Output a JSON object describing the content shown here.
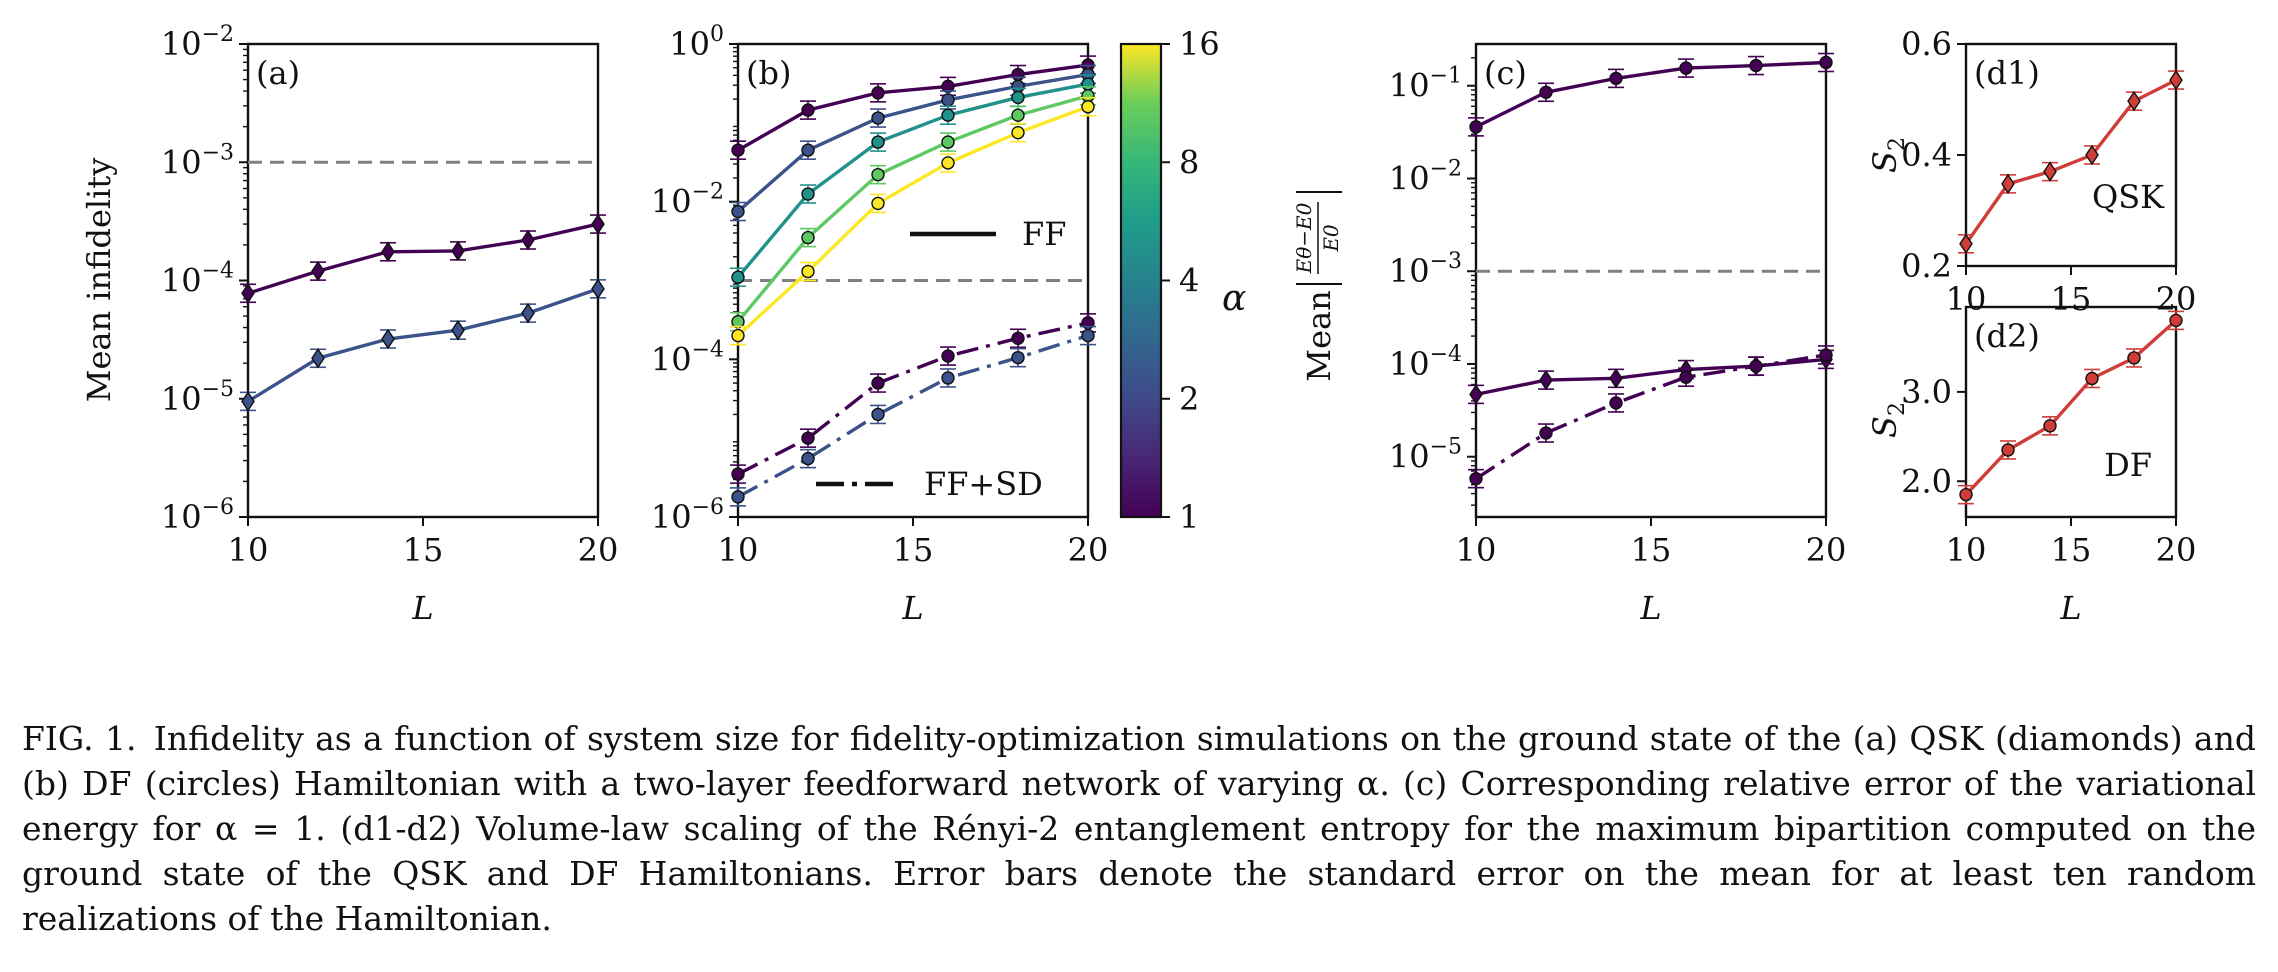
{
  "chart_data": [
    {
      "id": "a",
      "type": "line",
      "panel_label": "(a)",
      "xlabel": "L",
      "ylabel": "Mean infidelity",
      "yscale": "log",
      "xlim": [
        10,
        20
      ],
      "ylim_exp": [
        -6,
        -2
      ],
      "xticks": [
        10,
        15,
        20
      ],
      "xtick_labels": [
        "10",
        "15",
        "20"
      ],
      "yticks_exp": [
        -6,
        -5,
        -4,
        -3,
        -2
      ],
      "ytick_labels": [
        "10",
        "10",
        "10",
        "10",
        "10"
      ],
      "ytick_exps": [
        "−6",
        "−5",
        "−4",
        "−3",
        "−2"
      ],
      "hline": 0.001,
      "x": [
        10,
        12,
        14,
        16,
        18,
        20
      ],
      "series": [
        {
          "name": "alpha=1",
          "color": "#440154",
          "marker": "diamond",
          "values": [
            7.8e-05,
            0.00012,
            0.000175,
            0.000178,
            0.00022,
            0.0003
          ]
        },
        {
          "name": "alpha=2",
          "color": "#3b528b",
          "marker": "diamond",
          "values": [
            9.5e-06,
            2.2e-05,
            3.2e-05,
            3.8e-05,
            5.3e-05,
            8.5e-05
          ]
        }
      ]
    },
    {
      "id": "b",
      "type": "line",
      "panel_label": "(b)",
      "xlabel": "L",
      "yscale": "log",
      "xlim": [
        10,
        20
      ],
      "ylim_exp": [
        -6,
        0
      ],
      "xticks": [
        10,
        15,
        20
      ],
      "xtick_labels": [
        "10",
        "15",
        "20"
      ],
      "yticks_exp": [
        -6,
        -4,
        -2,
        0
      ],
      "ytick_labels": [
        "10",
        "10",
        "10",
        "10"
      ],
      "ytick_exps": [
        "−6",
        "−4",
        "−2",
        "0"
      ],
      "hline": 0.001,
      "legend": [
        {
          "label": "FF",
          "style": "solid"
        },
        {
          "label": "FF+SD",
          "style": "dashdot"
        }
      ],
      "x": [
        10,
        12,
        14,
        16,
        18,
        20
      ],
      "series": [
        {
          "name": "FF alpha=1",
          "color": "#440154",
          "style": "solid",
          "values": [
            0.045,
            0.145,
            0.24,
            0.29,
            0.41,
            0.54
          ]
        },
        {
          "name": "FF alpha=2",
          "color": "#3b528b",
          "style": "solid",
          "values": [
            0.0075,
            0.045,
            0.115,
            0.195,
            0.29,
            0.41
          ]
        },
        {
          "name": "FF alpha=4",
          "color": "#21918c",
          "style": "solid",
          "values": [
            0.0011,
            0.0125,
            0.057,
            0.125,
            0.21,
            0.31
          ]
        },
        {
          "name": "FF alpha=8",
          "color": "#5ec962",
          "style": "solid",
          "values": [
            0.0003,
            0.0035,
            0.022,
            0.057,
            0.125,
            0.22
          ]
        },
        {
          "name": "FF alpha=16",
          "color": "#fde725",
          "style": "solid",
          "values": [
            0.0002,
            0.0013,
            0.0095,
            0.031,
            0.075,
            0.16
          ]
        },
        {
          "name": "FF+SD alpha=1",
          "color": "#440154",
          "style": "dashdot",
          "values": [
            3.5e-06,
            1e-05,
            5e-05,
            0.00011,
            0.000185,
            0.00029
          ]
        },
        {
          "name": "FF+SD alpha=2",
          "color": "#3b528b",
          "style": "dashdot",
          "values": [
            1.8e-06,
            5.5e-06,
            2e-05,
            5.8e-05,
            0.000105,
            0.0002
          ]
        }
      ],
      "colorbar": {
        "label": "α",
        "tick_labels": [
          "1",
          "2",
          "4",
          "8",
          "16"
        ]
      }
    },
    {
      "id": "c",
      "type": "line",
      "panel_label": "(c)",
      "xlabel": "L",
      "ylabel": "Mean",
      "yscale": "log",
      "xlim": [
        10,
        20
      ],
      "ylim_exp": [
        -5.65,
        -0.55
      ],
      "xticks": [
        10,
        15,
        20
      ],
      "xtick_labels": [
        "10",
        "15",
        "20"
      ],
      "yticks_exp": [
        -5,
        -4,
        -3,
        -2,
        -1
      ],
      "ytick_labels": [
        "10",
        "10",
        "10",
        "10",
        "10"
      ],
      "ytick_exps": [
        "−5",
        "−4",
        "−3",
        "−2",
        "−1"
      ],
      "hline": 0.001,
      "x": [
        10,
        12,
        14,
        16,
        18,
        20
      ],
      "series": [
        {
          "name": "DF FF",
          "color": "#440154",
          "style": "solid",
          "marker": "circle",
          "values": [
            0.036,
            0.085,
            0.12,
            0.155,
            0.165,
            0.178
          ]
        },
        {
          "name": "QSK FF",
          "color": "#440154",
          "style": "solid",
          "marker": "diamond",
          "values": [
            4.7e-05,
            6.7e-05,
            7e-05,
            8.7e-05,
            9.5e-05,
            0.000112
          ]
        },
        {
          "name": "DF FF+SD",
          "color": "#440154",
          "style": "dashdot",
          "marker": "circle",
          "values": [
            5.8e-06,
            1.8e-05,
            3.8e-05,
            7.2e-05,
            9.45e-05,
            0.000125
          ]
        }
      ]
    },
    {
      "id": "d1",
      "type": "line",
      "panel_label": "(d1)",
      "ylabel": "S",
      "ylabel_sub": "2",
      "annotation": "QSK",
      "xlim": [
        10,
        20
      ],
      "ylim": [
        0.2,
        0.6
      ],
      "xticks": [
        10,
        15,
        20
      ],
      "xtick_labels": [
        "10",
        "15",
        "20"
      ],
      "yticks": [
        0.2,
        0.4,
        0.6
      ],
      "ytick_labels": [
        "0.2",
        "0.4",
        "0.6"
      ],
      "x": [
        10,
        12,
        14,
        16,
        18,
        20
      ],
      "series": [
        {
          "name": "QSK",
          "color": "#d03d39",
          "marker": "diamond",
          "values": [
            0.24,
            0.348,
            0.37,
            0.4,
            0.497,
            0.535
          ]
        }
      ]
    },
    {
      "id": "d2",
      "type": "line",
      "panel_label": "(d2)",
      "xlabel": "L",
      "ylabel": "S",
      "ylabel_sub": "2",
      "annotation": "DF",
      "xlim": [
        10,
        20
      ],
      "ylim": [
        1.6,
        3.95
      ],
      "xticks": [
        10,
        15,
        20
      ],
      "xtick_labels": [
        "10",
        "15",
        "20"
      ],
      "yticks": [
        2.0,
        3.0
      ],
      "ytick_labels": [
        "2.0",
        "3.0"
      ],
      "x": [
        10,
        12,
        14,
        16,
        18,
        20
      ],
      "series": [
        {
          "name": "DF",
          "color": "#d03d39",
          "marker": "circle",
          "values": [
            1.85,
            2.35,
            2.62,
            3.15,
            3.38,
            3.8
          ]
        }
      ]
    }
  ],
  "caption": {
    "label": "FIG. 1.",
    "text": "Infidelity as a function of system size for fidelity-optimization simulations on the ground state of the (a) QSK (diamonds) and (b) DF (circles) Hamiltonian with a two-layer feedforward network of varying α. (c) Corresponding relative error of the variational energy for α = 1. (d1-d2) Volume-law scaling of the Rényi-2 entanglement entropy for the maximum bipartition computed on the ground state of the QSK and DF Hamiltonians. Error bars denote the standard error on the mean for at least ten random realizations of the Hamiltonian."
  }
}
